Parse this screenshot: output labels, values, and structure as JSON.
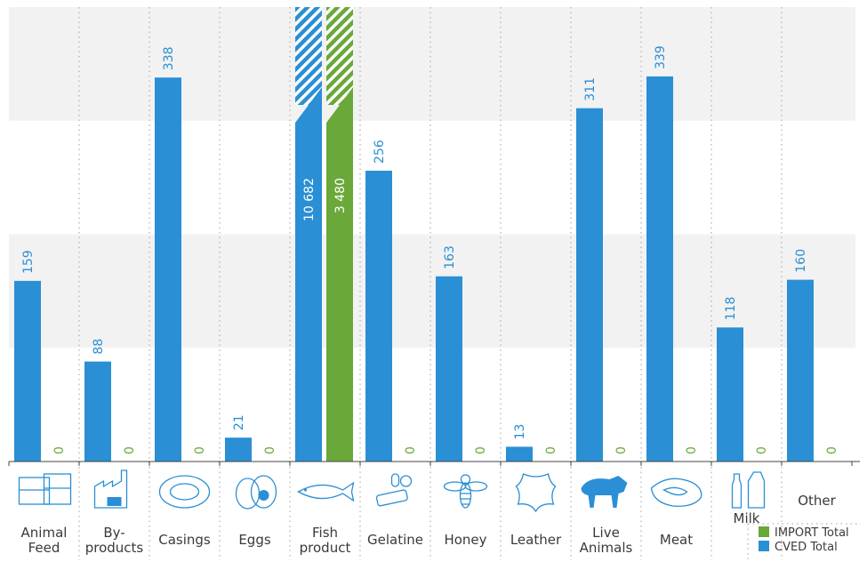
{
  "chart_data": {
    "type": "bar",
    "categories": [
      {
        "key": "animal-feed",
        "lines": [
          "Animal",
          "Feed"
        ],
        "icon": "hay-bales-icon"
      },
      {
        "key": "by-products",
        "lines": [
          "By-",
          "products"
        ],
        "icon": "factory-icon"
      },
      {
        "key": "casings",
        "lines": [
          "Casings"
        ],
        "icon": "sausage-casing-icon"
      },
      {
        "key": "eggs",
        "lines": [
          "Eggs"
        ],
        "icon": "eggs-icon"
      },
      {
        "key": "fish-product",
        "lines": [
          "Fish",
          "product"
        ],
        "icon": "fish-icon"
      },
      {
        "key": "gelatine",
        "lines": [
          "Gelatine"
        ],
        "icon": "gelatine-candy-icon"
      },
      {
        "key": "honey",
        "lines": [
          "Honey"
        ],
        "icon": "bee-icon"
      },
      {
        "key": "leather",
        "lines": [
          "Leather"
        ],
        "icon": "leather-hide-icon"
      },
      {
        "key": "live-animals",
        "lines": [
          "Live",
          "Animals"
        ],
        "icon": "cattle-icon"
      },
      {
        "key": "meat",
        "lines": [
          "Meat"
        ],
        "icon": "meat-cut-icon"
      },
      {
        "key": "milk",
        "lines": [
          "Milk"
        ],
        "icon": "milk-bottle-icon"
      },
      {
        "key": "other",
        "lines": [
          "Other"
        ],
        "icon": ""
      }
    ],
    "series": [
      {
        "name": "CVED Total",
        "color": "#2a8fd4",
        "label_color": "#2a8fd4",
        "values": [
          159,
          88,
          338,
          21,
          10682,
          256,
          163,
          13,
          311,
          339,
          118,
          160
        ],
        "labels": [
          "159",
          "88",
          "338",
          "21",
          "10 682",
          "256",
          "163",
          "13",
          "311",
          "339",
          "118",
          "160"
        ]
      },
      {
        "name": "IMPORT Total",
        "color": "#6aa83a",
        "label_color": "#6aa83a",
        "values": [
          0,
          0,
          0,
          0,
          3480,
          0,
          0,
          0,
          0,
          0,
          0,
          0
        ],
        "labels": [
          "0",
          "0",
          "0",
          "0",
          "3 480",
          "0",
          "0",
          "0",
          "0",
          "0",
          "0",
          "0"
        ]
      }
    ],
    "ylim": [
      0,
      400
    ],
    "axis_break": true,
    "grid_bands": true,
    "legend": {
      "placement": "bottom-right",
      "entries": [
        "IMPORT Total",
        "CVED Total"
      ]
    },
    "title": "",
    "xlabel": "",
    "ylabel": ""
  }
}
